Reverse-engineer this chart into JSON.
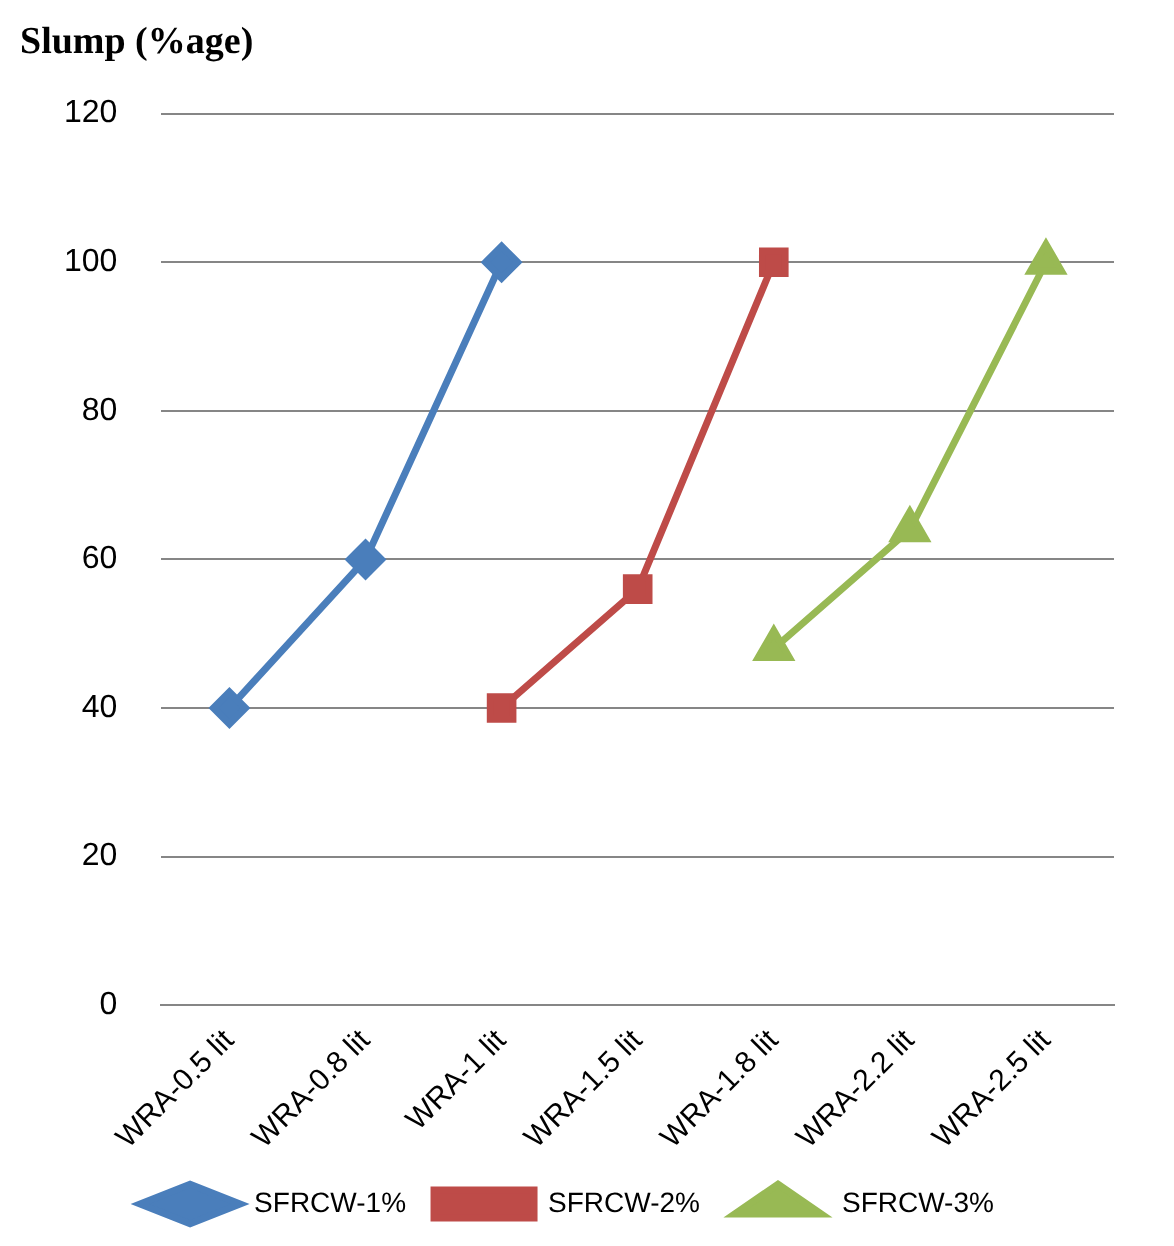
{
  "chart_data": {
    "type": "line",
    "title": "Slump (%age)",
    "categories": [
      "WRA-0.5 lit",
      "WRA-0.8 lit",
      "WRA-1 lit",
      "WRA-1.5 lit",
      "WRA-1.8 lit",
      "WRA-2.2 lit",
      "WRA-2.5 lit"
    ],
    "series": [
      {
        "name": "SFRCW-1%",
        "color": "#4a7ebb",
        "marker": "diamond",
        "values": [
          40,
          60,
          100,
          null,
          null,
          null,
          null
        ]
      },
      {
        "name": "SFRCW-2%",
        "color": "#be4b48",
        "marker": "square",
        "values": [
          null,
          null,
          40,
          56,
          100,
          null,
          null
        ]
      },
      {
        "name": "SFRCW-3%",
        "color": "#98b954",
        "marker": "triangle",
        "values": [
          null,
          null,
          null,
          null,
          48,
          64,
          100
        ]
      }
    ],
    "ylim": [
      0,
      120
    ],
    "yticks": [
      0,
      20,
      40,
      60,
      80,
      100,
      120
    ],
    "grid": "y",
    "legend": "bottom",
    "line_style": "solid"
  }
}
